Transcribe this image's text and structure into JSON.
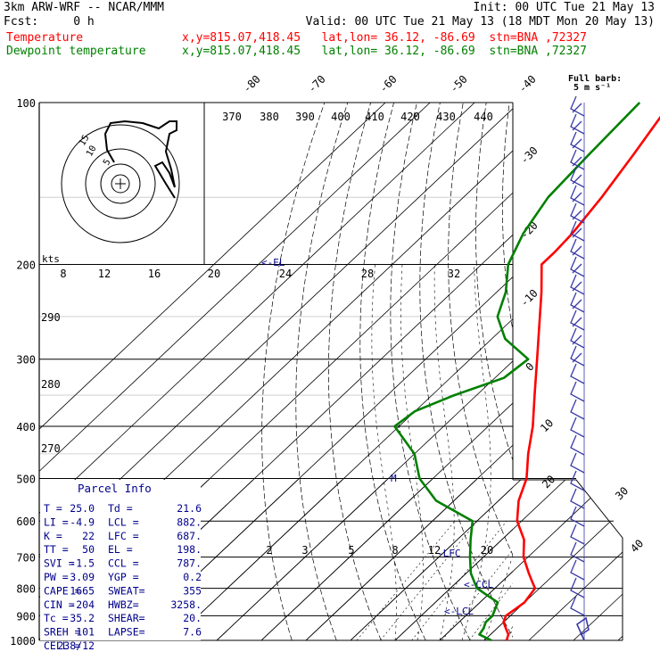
{
  "header": {
    "model": "3km ARW-WRF -- NCAR/MMM",
    "init": "Init: 00 UTC Tue 21 May 13",
    "fcst": "Fcst:     0 h",
    "valid": "Valid: 00 UTC Tue 21 May 13 (18 MDT Mon 20 May 13)",
    "temp_label": "Temperature",
    "temp_info": "x,y=815.07,418.45   lat,lon= 36.12, -86.69  stn=BNA ,72327",
    "dew_label": "Dewpoint temperature",
    "dew_info": "x,y=815.07,418.45   lat,lon= 36.12, -86.69  stn=BNA ,72327",
    "full_barb": "Full barb:",
    "full_barb_units": "5 m s⁻¹"
  },
  "colors": {
    "temperature": "#ff0000",
    "dewpoint": "#008000",
    "annotation": "#00008b",
    "wind": "#3a3aa8"
  },
  "chart_data": {
    "type": "skew-t",
    "pressure_levels": [
      100,
      200,
      300,
      400,
      500,
      600,
      700,
      800,
      900,
      1000
    ],
    "pressure_labels": [
      "100",
      "200",
      "300",
      "400",
      "500",
      "600",
      "700",
      "800",
      "900",
      "1000"
    ],
    "temperature_ticks": [
      "-80",
      "-70",
      "-60",
      "-50",
      "-40",
      "-30",
      "-20",
      "-10",
      "0",
      "10",
      "20",
      "30",
      "40"
    ],
    "theta_labels": [
      "370",
      "380",
      "390",
      "400",
      "410",
      "420",
      "430",
      "440"
    ],
    "theta_left_labels": [
      "290",
      "280",
      "270"
    ],
    "mixing_ratio_labels": [
      "2",
      "3",
      "5",
      "8",
      "12",
      "20"
    ],
    "hodograph_speed_labels": [
      "8",
      "12",
      "16",
      "20",
      "24",
      "28",
      "32"
    ],
    "hodograph_units": "kts",
    "hodograph_ring_labels": [
      "5",
      "10",
      "15"
    ],
    "level_markers": [
      "EL",
      "LFC",
      "CCL",
      "LCL"
    ],
    "temperature_profile": [
      {
        "p": 1000,
        "t": 25.0
      },
      {
        "p": 975,
        "t": 24.0
      },
      {
        "p": 950,
        "t": 22.0
      },
      {
        "p": 925,
        "t": 20.0
      },
      {
        "p": 900,
        "t": 19.0
      },
      {
        "p": 875,
        "t": 19.5
      },
      {
        "p": 850,
        "t": 20.0
      },
      {
        "p": 825,
        "t": 19.5
      },
      {
        "p": 800,
        "t": 19.0
      },
      {
        "p": 775,
        "t": 16.5
      },
      {
        "p": 750,
        "t": 14.0
      },
      {
        "p": 700,
        "t": 9.0
      },
      {
        "p": 650,
        "t": 5.0
      },
      {
        "p": 600,
        "t": -1.0
      },
      {
        "p": 550,
        "t": -5.5
      },
      {
        "p": 500,
        "t": -9.0
      },
      {
        "p": 450,
        "t": -14.5
      },
      {
        "p": 400,
        "t": -20.0
      },
      {
        "p": 350,
        "t": -27.0
      },
      {
        "p": 300,
        "t": -35.0
      },
      {
        "p": 250,
        "t": -44.5
      },
      {
        "p": 225,
        "t": -50.0
      },
      {
        "p": 200,
        "t": -56.5
      },
      {
        "p": 190,
        "t": -56.5
      },
      {
        "p": 175,
        "t": -57.0
      },
      {
        "p": 150,
        "t": -59.0
      },
      {
        "p": 125,
        "t": -62.0
      },
      {
        "p": 100,
        "t": -66.0
      }
    ],
    "dewpoint_profile": [
      {
        "p": 1000,
        "t": 21.6
      },
      {
        "p": 975,
        "t": 17.5
      },
      {
        "p": 950,
        "t": 17.0
      },
      {
        "p": 925,
        "t": 16.0
      },
      {
        "p": 900,
        "t": 16.0
      },
      {
        "p": 875,
        "t": 15.0
      },
      {
        "p": 850,
        "t": 14.0
      },
      {
        "p": 825,
        "t": 10.0
      },
      {
        "p": 800,
        "t": 6.0
      },
      {
        "p": 775,
        "t": 3.5
      },
      {
        "p": 750,
        "t": 1.0
      },
      {
        "p": 700,
        "t": -3.0
      },
      {
        "p": 650,
        "t": -7.0
      },
      {
        "p": 600,
        "t": -11.0
      },
      {
        "p": 550,
        "t": -24.0
      },
      {
        "p": 500,
        "t": -33.0
      },
      {
        "p": 450,
        "t": -40.0
      },
      {
        "p": 400,
        "t": -51.0
      },
      {
        "p": 375,
        "t": -50.0
      },
      {
        "p": 350,
        "t": -45.0
      },
      {
        "p": 325,
        "t": -38.0
      },
      {
        "p": 300,
        "t": -37.0
      },
      {
        "p": 275,
        "t": -47.0
      },
      {
        "p": 250,
        "t": -54.0
      },
      {
        "p": 225,
        "t": -58.0
      },
      {
        "p": 200,
        "t": -64.0
      },
      {
        "p": 175,
        "t": -68.0
      },
      {
        "p": 150,
        "t": -71.0
      },
      {
        "p": 125,
        "t": -72.0
      },
      {
        "p": 100,
        "t": -73.0
      }
    ]
  },
  "parcel_info": {
    "title": "Parcel Info",
    "rows": [
      [
        "T  =",
        "25.0",
        "Td =",
        "21.6"
      ],
      [
        "LI =",
        "-4.9",
        "LCL =",
        "882."
      ],
      [
        "K  =",
        "22",
        "LFC =",
        "687."
      ],
      [
        "TT =",
        "50",
        "EL =",
        "198."
      ],
      [
        "SVI =",
        "-1.5",
        "CCL =",
        "787."
      ],
      [
        "PW =",
        "3.09",
        "YGP =",
        "0.2"
      ],
      [
        "CAPE =",
        "1665",
        "SWEAT=",
        "355"
      ],
      [
        "CIN =",
        "-204",
        "HWBZ=",
        "3258."
      ],
      [
        "Tc =",
        "35.2",
        "SHEAR=",
        "20."
      ],
      [
        "SREH =",
        "101",
        "LAPSE=",
        "7.6"
      ],
      [
        "CELL =",
        "238/12",
        "",
        ""
      ]
    ]
  }
}
